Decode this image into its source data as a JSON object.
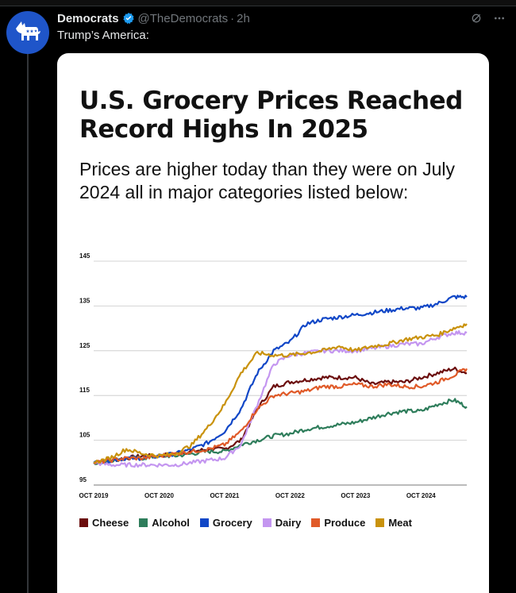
{
  "post": {
    "author": "Democrats",
    "handle": "@TheDemocrats",
    "separator": "·",
    "time": "2h",
    "text": "Trump’s America:",
    "avatar_icon": "donkey-icon",
    "avatar_color": "#1f55c9"
  },
  "card": {
    "title": "U.S. Grocery Prices Reached Record Highs In 2025",
    "subtitle": "Prices are higher today than they were on July 2024 all in major categories listed below:"
  },
  "chart_data": {
    "type": "line",
    "title": "",
    "xlabel": "",
    "ylabel": "",
    "ylim": [
      95,
      145
    ],
    "yticks": [
      "95",
      "105",
      "115",
      "125",
      "135",
      "145"
    ],
    "xticks": [
      {
        "x": 2019.75,
        "label": "OCT 2019"
      },
      {
        "x": 2020.75,
        "label": "OCT 2020"
      },
      {
        "x": 2021.75,
        "label": "OCT 2021"
      },
      {
        "x": 2022.75,
        "label": "OCT 2022"
      },
      {
        "x": 2023.75,
        "label": "OCT 2023"
      },
      {
        "x": 2024.75,
        "label": "OCT 2024"
      }
    ],
    "xlim": [
      2019.75,
      2025.45
    ],
    "grid": true,
    "legend": "bottom",
    "x": [
      2019.75,
      2020.0,
      2020.25,
      2020.5,
      2020.75,
      2021.0,
      2021.25,
      2021.5,
      2021.75,
      2022.0,
      2022.25,
      2022.5,
      2022.75,
      2023.0,
      2023.25,
      2023.5,
      2023.75,
      2024.0,
      2024.25,
      2024.5,
      2024.75,
      2025.0,
      2025.25,
      2025.45
    ],
    "series": [
      {
        "name": "Cheese",
        "color": "#6b0d0d",
        "values": [
          100,
          100.5,
          101,
          101.5,
          101.5,
          102,
          102.5,
          103,
          103,
          105,
          112,
          117,
          118,
          118.5,
          119,
          119,
          119,
          117.5,
          118,
          118,
          119,
          120,
          121,
          120
        ]
      },
      {
        "name": "Alcohol",
        "color": "#2e7d5b",
        "values": [
          100,
          100.5,
          101,
          101,
          101.5,
          101.5,
          102,
          102.5,
          102.5,
          104,
          105,
          106,
          106.5,
          107.5,
          108,
          108.5,
          109,
          110,
          111,
          111.5,
          111.5,
          113,
          114,
          112.5
        ]
      },
      {
        "name": "Grocery",
        "color": "#1147c7",
        "values": [
          100,
          100.5,
          101,
          101,
          101.5,
          102,
          103,
          104.5,
          107,
          112,
          120,
          125,
          127,
          131,
          132,
          132.5,
          133,
          133.5,
          134,
          134.5,
          134.5,
          135.5,
          137,
          137
        ]
      },
      {
        "name": "Dairy",
        "color": "#c496f0",
        "values": [
          100,
          99.5,
          99.5,
          99.5,
          99.5,
          99.5,
          100,
          100.5,
          101,
          104,
          113,
          122,
          124,
          124.5,
          125,
          125,
          125,
          125.5,
          126,
          126.5,
          126.5,
          128,
          129,
          129
        ]
      },
      {
        "name": "Produce",
        "color": "#e05a28",
        "values": [
          100,
          100.5,
          101,
          101,
          101.5,
          102,
          102.5,
          103,
          104,
          107,
          112,
          115,
          115.5,
          116,
          117,
          117,
          117.5,
          117,
          117.5,
          117,
          117,
          118,
          119.5,
          121
        ]
      },
      {
        "name": "Meat",
        "color": "#c9920c",
        "values": [
          100,
          101,
          103,
          102,
          101.5,
          102,
          104,
          108,
          113,
          120,
          124.5,
          124,
          124,
          124.5,
          125,
          126,
          125,
          126,
          126.5,
          127.5,
          128,
          128.5,
          130,
          131
        ]
      }
    ]
  }
}
